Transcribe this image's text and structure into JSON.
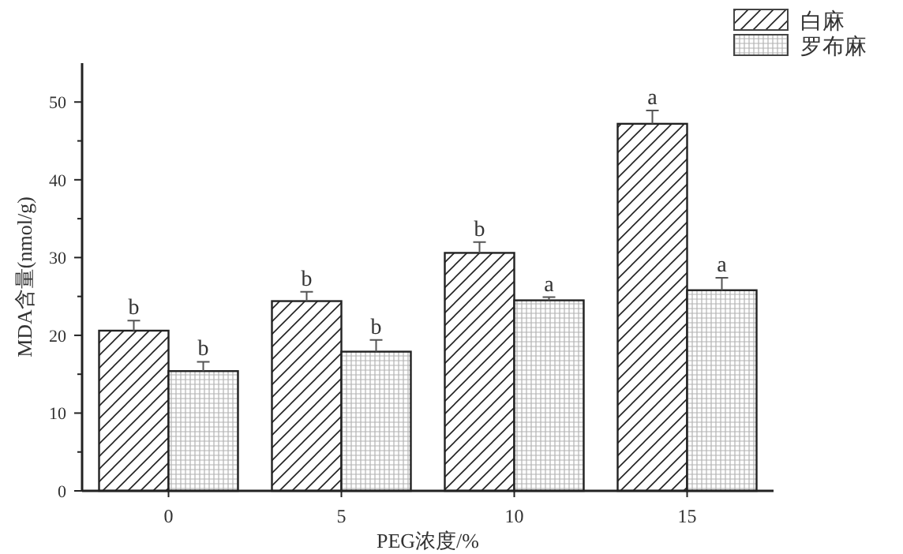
{
  "chart_data": {
    "type": "bar",
    "xlabel": "PEG浓度/%",
    "ylabel": "MDA含量(nmol/g)",
    "categories": [
      "0",
      "5",
      "10",
      "15"
    ],
    "series": [
      {
        "name": "白麻",
        "color": "#222222",
        "values": [
          20.6,
          24.4,
          30.6,
          47.2
        ],
        "errors": [
          1.3,
          1.2,
          1.4,
          1.7
        ],
        "value_labels": [
          "b",
          "b",
          "b",
          "a"
        ]
      },
      {
        "name": "罗布麻",
        "color": "#222222",
        "values": [
          15.4,
          17.9,
          24.5,
          25.8
        ],
        "errors": [
          1.2,
          1.5,
          0.4,
          1.6
        ],
        "value_labels": [
          "b",
          "b",
          "a",
          "a"
        ]
      }
    ],
    "ylim": [
      0,
      55
    ],
    "yticks": [
      0,
      10,
      20,
      30,
      40,
      50
    ],
    "legend": "top right"
  }
}
